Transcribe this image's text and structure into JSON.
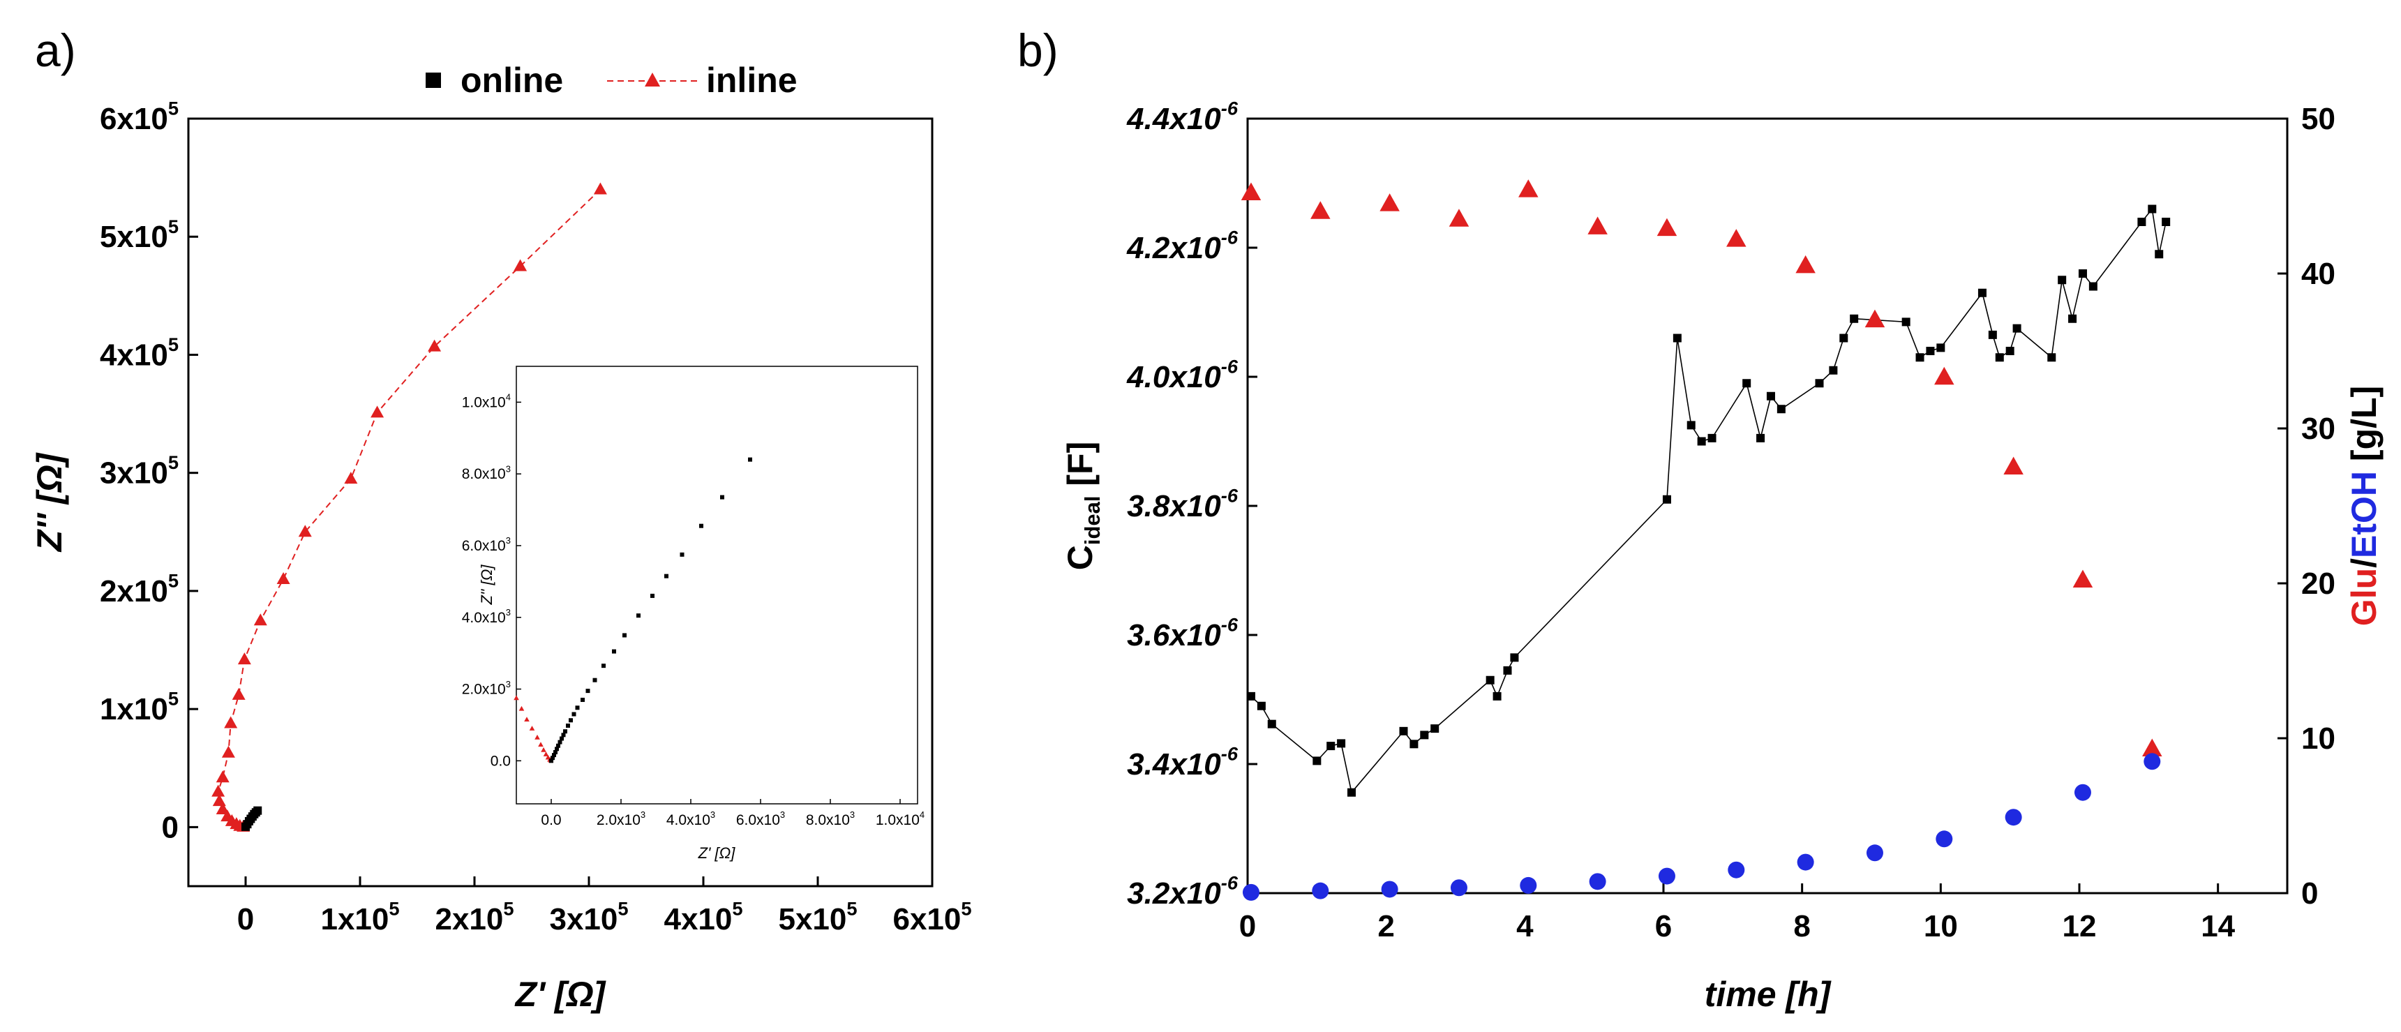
{
  "colors": {
    "online": "#000000",
    "inline": "#e02020",
    "glucose": "#e02020",
    "ethanol": "#1f2ae0",
    "axis": "#000000"
  },
  "chart_data": [
    {
      "id": "a",
      "type": "scatter",
      "panel_label": "a)",
      "legend": {
        "placement": "top-center",
        "entries": [
          "online",
          "inline"
        ]
      },
      "xlabel": "Z' [Ω]",
      "ylabel": "Z'' [Ω]",
      "xlim": [
        -50000,
        600000
      ],
      "ylim": [
        -50000,
        600000
      ],
      "x_ticks": [
        0,
        100000,
        200000,
        300000,
        400000,
        500000,
        600000
      ],
      "x_tick_labels": [
        "0",
        "1x10^5",
        "2x10^5",
        "3x10^5",
        "4x10^5",
        "5x10^5",
        "6x10^5"
      ],
      "y_ticks": [
        0,
        100000,
        200000,
        300000,
        400000,
        500000,
        600000
      ],
      "y_tick_labels": [
        "0",
        "1x10^5",
        "2x10^5",
        "3x10^5",
        "4x10^5",
        "5x10^5",
        "6x10^5"
      ],
      "series": [
        {
          "name": "inline",
          "marker": "triangle",
          "line": "dashed",
          "x": [
            310000,
            240000,
            165000,
            115000,
            92000,
            52000,
            33000,
            13000,
            -1000,
            -6000,
            -13000,
            -15000,
            -20000,
            -24000,
            -23000,
            -20000,
            -16000,
            -12000,
            -8000,
            -5000,
            -2000
          ],
          "y": [
            540000,
            475000,
            407000,
            351000,
            295000,
            250000,
            210000,
            175000,
            142000,
            112000,
            88000,
            63000,
            42000,
            30000,
            22000,
            15000,
            9000,
            5000,
            2500,
            1000,
            300
          ]
        },
        {
          "name": "online",
          "marker": "square",
          "line": "none",
          "x": [
            0,
            1500,
            3000,
            4500,
            6000,
            7500,
            9000,
            10500
          ],
          "y": [
            300,
            2500,
            5000,
            7000,
            9000,
            11000,
            12500,
            14000
          ]
        }
      ],
      "inset": {
        "xlabel": "Z' [Ω]",
        "ylabel": "Z'' [Ω]",
        "xlim": [
          -1000,
          10500
        ],
        "ylim": [
          -1200,
          11000
        ],
        "x_ticks": [
          0,
          2000,
          4000,
          6000,
          8000,
          10000
        ],
        "x_tick_labels": [
          "0.0",
          "2.0x10^3",
          "4.0x10^3",
          "6.0x10^3",
          "8.0x10^3",
          "1.0x10^4"
        ],
        "y_ticks": [
          0,
          2000,
          4000,
          6000,
          8000,
          10000
        ],
        "y_tick_labels": [
          "0.0",
          "2.0x10^3",
          "4.0x10^3",
          "6.0x10^3",
          "8.0x10^3",
          "1.0x10^4"
        ],
        "series": [
          {
            "name": "inline",
            "marker": "triangle",
            "x": [
              -1000,
              -850,
              -700,
              -550,
              -400,
              -300,
              -220,
              -150,
              -90,
              -40,
              -10
            ],
            "y": [
              1750,
              1450,
              1150,
              900,
              650,
              450,
              300,
              180,
              90,
              30,
              5
            ]
          },
          {
            "name": "online",
            "marker": "square",
            "x": [
              0,
              40,
              80,
              120,
              160,
              200,
              250,
              300,
              350,
              400,
              480,
              560,
              650,
              750,
              900,
              1050,
              1250,
              1500,
              1800,
              2100,
              2500,
              2900,
              3300,
              3750,
              4300,
              4900,
              5700
            ],
            "y": [
              0,
              80,
              160,
              240,
              330,
              420,
              520,
              620,
              720,
              820,
              980,
              1130,
              1300,
              1480,
              1700,
              1950,
              2250,
              2650,
              3050,
              3500,
              4050,
              4600,
              5150,
              5750,
              6550,
              7350,
              8400
            ]
          }
        ]
      }
    },
    {
      "id": "b",
      "type": "line",
      "panel_label": "b)",
      "xlabel": "time [h]",
      "ylabel": "C_ideal [F]",
      "ylabel_right": {
        "part1": "Glu",
        "sep": "/",
        "part2": "EtOH",
        "unit": " [g/L]"
      },
      "xlim": [
        0,
        15
      ],
      "ylim": [
        3.2e-06,
        4.4e-06
      ],
      "y2lim": [
        0,
        50
      ],
      "x_ticks": [
        0,
        2,
        4,
        6,
        8,
        10,
        12,
        14
      ],
      "x_tick_labels": [
        "0",
        "2",
        "4",
        "6",
        "8",
        "10",
        "12",
        "14"
      ],
      "y_ticks": [
        3.2e-06,
        3.4e-06,
        3.6e-06,
        3.8e-06,
        4e-06,
        4.2e-06,
        4.4e-06
      ],
      "y_tick_labels": [
        "3.2x10^-6",
        "3.4x10^-6",
        "3.6x10^-6",
        "3.8x10^-6",
        "4.0x10^-6",
        "4.2x10^-6",
        "4.4x10^-6"
      ],
      "y2_ticks": [
        0,
        10,
        20,
        30,
        40,
        50
      ],
      "y2_tick_labels": [
        "0",
        "10",
        "20",
        "30",
        "40",
        "50"
      ],
      "series": [
        {
          "name": "C_ideal",
          "axis": "left",
          "marker": "square",
          "line": "solid",
          "x": [
            0.05,
            0.2,
            0.35,
            1.0,
            1.2,
            1.35,
            1.5,
            2.25,
            2.4,
            2.55,
            2.7,
            3.5,
            3.6,
            3.75,
            3.85,
            6.05,
            6.2,
            6.4,
            6.55,
            6.7,
            7.2,
            7.4,
            7.55,
            7.7,
            8.25,
            8.45,
            8.6,
            8.75,
            9.5,
            9.7,
            9.85,
            10.0,
            10.6,
            10.75,
            10.85,
            11.0,
            11.1,
            11.6,
            11.75,
            11.9,
            12.05,
            12.2,
            12.9,
            13.05,
            13.15,
            13.25
          ],
          "y": [
            3.505e-06,
            3.49e-06,
            3.462e-06,
            3.405e-06,
            3.428e-06,
            3.432e-06,
            3.356e-06,
            3.451e-06,
            3.431e-06,
            3.445e-06,
            3.455e-06,
            3.53e-06,
            3.505e-06,
            3.545e-06,
            3.565e-06,
            3.81e-06,
            4.06e-06,
            3.925e-06,
            3.9e-06,
            3.905e-06,
            3.99e-06,
            3.905e-06,
            3.97e-06,
            3.95e-06,
            3.99e-06,
            4.01e-06,
            4.06e-06,
            4.09e-06,
            4.085e-06,
            4.03e-06,
            4.04e-06,
            4.045e-06,
            4.13e-06,
            4.065e-06,
            4.03e-06,
            4.04e-06,
            4.075e-06,
            4.03e-06,
            4.15e-06,
            4.09e-06,
            4.16e-06,
            4.14e-06,
            4.24e-06,
            4.26e-06,
            4.19e-06,
            4.24e-06
          ]
        },
        {
          "name": "Glu",
          "axis": "right",
          "marker": "triangle",
          "line": "none",
          "x": [
            0.05,
            1.05,
            2.05,
            3.05,
            4.05,
            5.05,
            6.05,
            7.05,
            8.05,
            9.05,
            10.05,
            11.05,
            12.05,
            13.05
          ],
          "y": [
            45.2,
            44.0,
            44.5,
            43.5,
            45.4,
            43.0,
            42.9,
            42.2,
            40.5,
            37.0,
            33.3,
            27.5,
            20.2,
            9.3
          ]
        },
        {
          "name": "EtOH",
          "axis": "right",
          "marker": "circle",
          "line": "none",
          "x": [
            0.05,
            1.05,
            2.05,
            3.05,
            4.05,
            5.05,
            6.05,
            7.05,
            8.05,
            9.05,
            10.05,
            11.05,
            12.05,
            13.05
          ],
          "y": [
            0.05,
            0.15,
            0.25,
            0.35,
            0.5,
            0.75,
            1.1,
            1.5,
            2.0,
            2.6,
            3.5,
            4.9,
            6.5,
            8.5
          ]
        }
      ]
    }
  ]
}
